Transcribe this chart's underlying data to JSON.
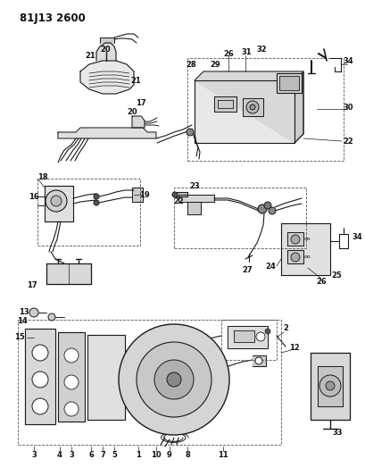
{
  "title": "81J13 2600",
  "bg_color": "#ffffff",
  "lc": "#1a1a1a",
  "fig_width": 4.1,
  "fig_height": 5.33,
  "dpi": 100,
  "title_fontsize": 8.5,
  "fs": 6.0,
  "fs_title": 7.5
}
